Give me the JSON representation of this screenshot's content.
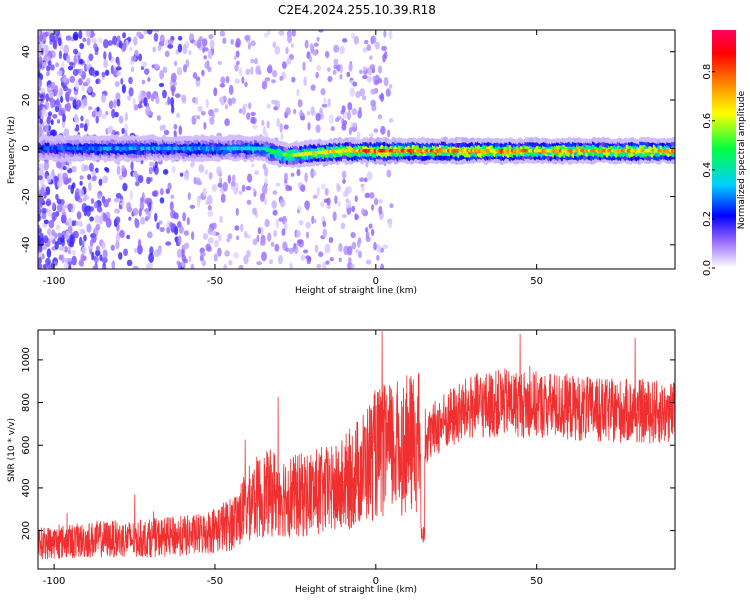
{
  "title": "C2E4.2024.255.10.39.R18",
  "chart_data": [
    {
      "type": "heatmap",
      "xlabel": "Height of straight line (km)",
      "ylabel": "Frequency (Hz)",
      "xlim": [
        -105,
        93
      ],
      "ylim": [
        -50,
        49
      ],
      "xticks": [
        -100,
        -50,
        0,
        50
      ],
      "yticks": [
        -40,
        -20,
        0,
        20,
        40
      ],
      "colorbar": {
        "label": "Normalized spectral amplitude",
        "range": [
          0,
          0.97
        ],
        "ticks": [
          0.0,
          0.2,
          0.4,
          0.6,
          0.8
        ]
      },
      "band_profile": {
        "x": [
          -100,
          -75,
          -50,
          -35,
          -27,
          -20,
          -10,
          0,
          30,
          60,
          93
        ],
        "center_hz": [
          0,
          0,
          0,
          0,
          -3,
          -2,
          -1,
          -1,
          -1,
          -1,
          -1
        ],
        "peak_amplitude": [
          0.3,
          0.35,
          0.35,
          0.45,
          0.6,
          0.7,
          0.8,
          0.9,
          0.85,
          0.8,
          0.8
        ]
      },
      "grid": false
    },
    {
      "type": "line",
      "xlabel": "Height of straight line (km)",
      "ylabel": "SNR (10 * v/v)",
      "xlim": [
        -105,
        93
      ],
      "ylim": [
        20,
        1140
      ],
      "xticks": [
        -100,
        -50,
        0,
        50
      ],
      "yticks": [
        200,
        400,
        600,
        800,
        1000
      ],
      "color": "#f03030",
      "series": [
        {
          "x": [
            -105,
            -95,
            -85,
            -75,
            -65,
            -55,
            -45,
            -38,
            -32,
            -25,
            -18,
            -12,
            -5,
            0,
            5,
            10,
            15,
            20,
            30,
            40,
            50,
            60,
            70,
            80,
            93
          ],
          "values": [
            140,
            150,
            160,
            160,
            170,
            180,
            230,
            350,
            380,
            360,
            380,
            390,
            480,
            560,
            580,
            600,
            620,
            700,
            780,
            800,
            790,
            780,
            760,
            760,
            750
          ]
        }
      ],
      "grid": false
    }
  ]
}
